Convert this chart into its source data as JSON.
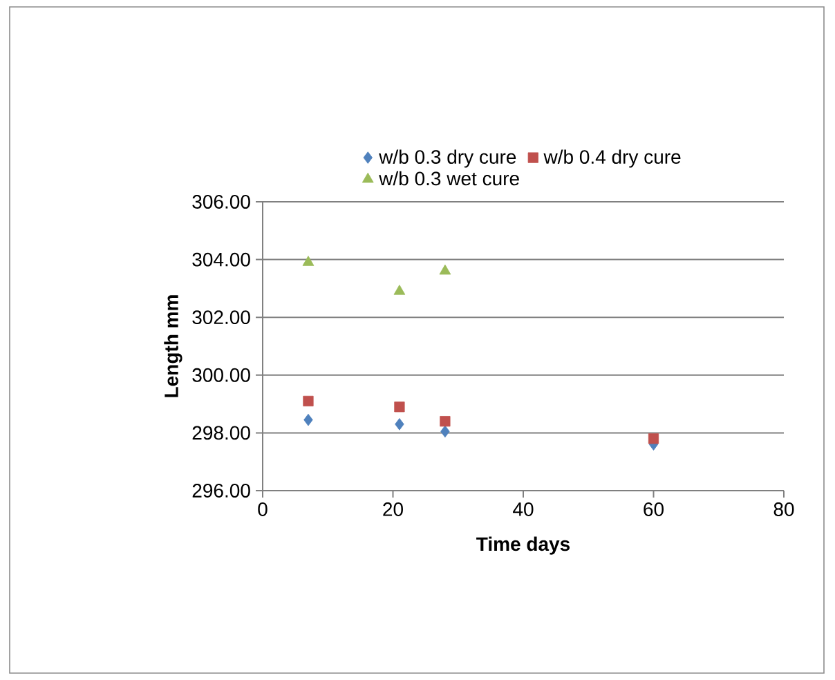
{
  "chart_data": {
    "type": "scatter",
    "xlabel": "Time days",
    "ylabel": "Length mm",
    "xlim": [
      0,
      80
    ],
    "xticks": [
      0,
      20,
      40,
      60,
      80
    ],
    "ylim": [
      296,
      306
    ],
    "yticks": [
      {
        "value": 296,
        "label": "296.00"
      },
      {
        "value": 298,
        "label": "298.00"
      },
      {
        "value": 300,
        "label": "300.00"
      },
      {
        "value": 302,
        "label": "302.00"
      },
      {
        "value": 304,
        "label": "304.00"
      },
      {
        "value": 306,
        "label": "306.00"
      }
    ],
    "grid": "y",
    "legend": "top",
    "series": [
      {
        "name": "w/b 0.3 dry cure",
        "color": "#4f81bd",
        "marker": "diamond",
        "x": [
          7,
          21,
          28,
          60
        ],
        "values": [
          298.45,
          298.3,
          298.05,
          297.6
        ]
      },
      {
        "name": "w/b 0.4 dry cure",
        "color": "#c0504d",
        "marker": "square",
        "x": [
          7,
          21,
          28,
          60
        ],
        "values": [
          299.1,
          298.9,
          298.4,
          297.8
        ]
      },
      {
        "name": "w/b 0.3 wet cure",
        "color": "#9bbb59",
        "marker": "triangle",
        "x": [
          7,
          21,
          28
        ],
        "values": [
          303.9,
          302.9,
          303.6
        ]
      }
    ]
  }
}
